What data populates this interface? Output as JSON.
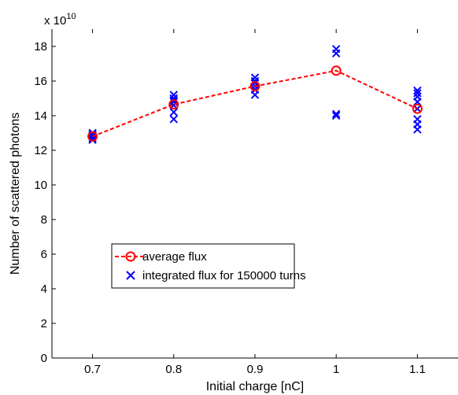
{
  "chart_data": {
    "type": "line",
    "xlabel": "Initial charge [nC]",
    "ylabel": "Number of scattered photons",
    "y_multiplier_base": "x 10",
    "y_multiplier_exp": "10",
    "xlim": [
      0.65,
      1.15
    ],
    "ylim": [
      0,
      19
    ],
    "xticks": [
      0.7,
      0.8,
      0.9,
      1.0,
      1.1
    ],
    "xtick_labels": [
      "0.7",
      "0.8",
      "0.9",
      "1",
      "1.1"
    ],
    "yticks": [
      0,
      2,
      4,
      6,
      8,
      10,
      12,
      14,
      16,
      18
    ],
    "ytick_labels": [
      "0",
      "2",
      "4",
      "6",
      "8",
      "10",
      "12",
      "14",
      "16",
      "18"
    ],
    "grid": false,
    "legend_position": "lower-left",
    "series": [
      {
        "name": "average flux",
        "style": "dashed-line-circle",
        "color": "#ff0000",
        "x": [
          0.7,
          0.8,
          0.9,
          1.0,
          1.1
        ],
        "y": [
          12.8,
          14.65,
          15.7,
          16.6,
          14.4
        ]
      },
      {
        "name": "integrated flux for 150000 turns",
        "style": "cross-markers",
        "color": "#0000ff",
        "x": [
          0.7,
          0.7,
          0.7,
          0.7,
          0.7,
          0.7,
          0.8,
          0.8,
          0.8,
          0.8,
          0.8,
          0.8,
          0.8,
          0.9,
          0.9,
          0.9,
          0.9,
          0.9,
          0.9,
          1.0,
          1.0,
          1.0,
          1.0,
          1.1,
          1.1,
          1.1,
          1.1,
          1.1,
          1.1,
          1.1,
          1.1
        ],
        "y": [
          12.6,
          12.7,
          12.8,
          12.85,
          12.9,
          13.0,
          13.8,
          14.2,
          14.6,
          14.8,
          14.9,
          15.0,
          15.2,
          15.2,
          15.5,
          15.7,
          15.9,
          16.0,
          16.2,
          14.0,
          14.1,
          17.6,
          17.85,
          13.2,
          13.5,
          13.8,
          14.4,
          14.8,
          15.1,
          15.3,
          15.45
        ]
      }
    ]
  }
}
